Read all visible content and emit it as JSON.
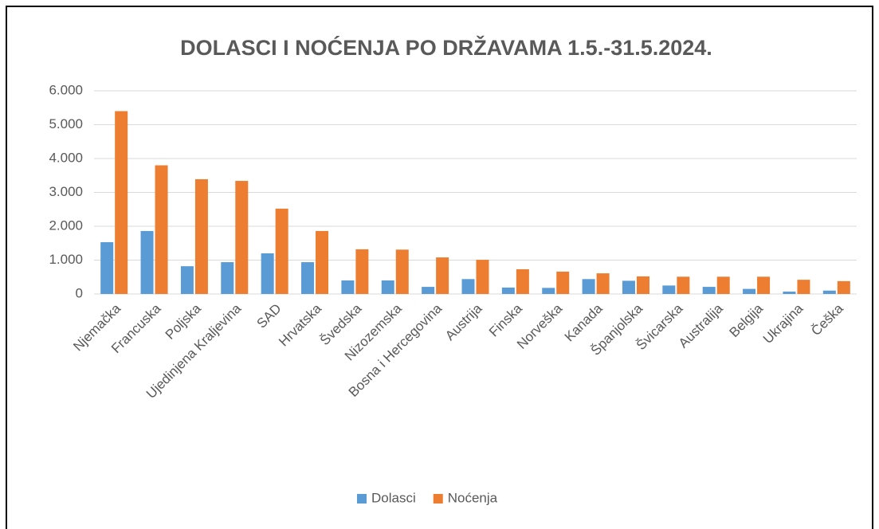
{
  "chart_data": {
    "type": "bar",
    "title": "DOLASCI I NOĆENJA PO DRŽAVAMA 1.5.-31.5.2024.",
    "categories": [
      "Njemačka",
      "Francuska",
      "Poljska",
      "Ujedinjena Kraljevina",
      "SAD",
      "Hrvatska",
      "Švedska",
      "Nizozemska",
      "Bosna i Hercegovina",
      "Austrija",
      "Finska",
      "Norveška",
      "Kanada",
      "Španjolska",
      "Švicarska",
      "Australija",
      "Belgija",
      "Ukrajina",
      "Češka"
    ],
    "series": [
      {
        "name": "Dolasci",
        "color": "#5b9bd5",
        "values": [
          1530,
          1860,
          820,
          940,
          1200,
          940,
          400,
          400,
          210,
          440,
          190,
          180,
          440,
          390,
          250,
          210,
          150,
          70,
          100
        ]
      },
      {
        "name": "Noćenja",
        "color": "#ed7d31",
        "values": [
          5400,
          3800,
          3390,
          3340,
          2520,
          1860,
          1320,
          1310,
          1080,
          1010,
          730,
          660,
          610,
          520,
          510,
          510,
          510,
          420,
          380
        ]
      }
    ],
    "ylim": [
      0,
      6000
    ],
    "yticks": [
      0,
      {
        "value": 1000,
        "label": "1.000"
      },
      {
        "value": 2000,
        "label": "2.000"
      },
      {
        "value": 3000,
        "label": "3.000"
      },
      {
        "value": 4000,
        "label": "4.000"
      },
      {
        "value": 5000,
        "label": "5.000"
      },
      {
        "value": 6000,
        "label": "6.000"
      }
    ],
    "grid": true,
    "legend": "bottom"
  }
}
